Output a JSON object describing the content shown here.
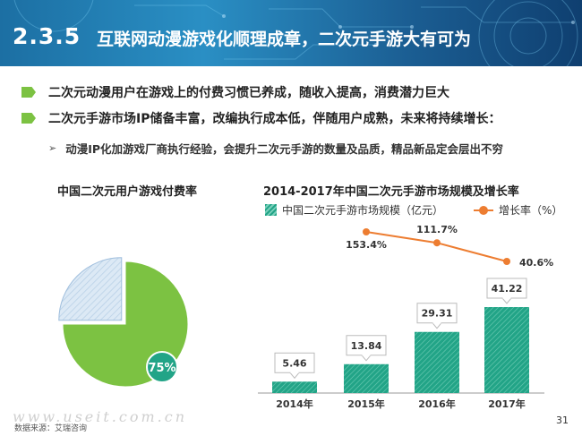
{
  "header": {
    "section_number": "2.3.5",
    "title": "互联网动漫游戏化顺理成章，二次元手游大有可为"
  },
  "bullets": [
    "二次元动漫用户在游戏上的付费习惯已养成，随收入提高，消费潜力巨大",
    "二次元手游市场IP储备丰富，改编执行成本低，伴随用户成熟，未来将持续增长："
  ],
  "sub_bullet": "动漫IP化加游戏厂商执行经验，会提升二次元手游的数量及品质，精品新品定会层出不穷",
  "colors": {
    "pie_main": "#7cc242",
    "pie_rest": "#dce9f5",
    "bar": "#22a487",
    "line": "#ed7d31",
    "bullet": "#7cc242"
  },
  "chart_data": [
    {
      "type": "pie",
      "title": "中国二次元用户游戏付费率",
      "values": [
        75,
        25
      ],
      "labels": [
        "75%",
        ""
      ]
    },
    {
      "type": "bar",
      "title": "2014-2017年中国二次元手游市场规模及增长率",
      "categories": [
        "2014年",
        "2015年",
        "2016年",
        "2017年"
      ],
      "series": [
        {
          "name": "中国二次元手游市场规模（亿元）",
          "type": "bar",
          "values": [
            5.46,
            13.84,
            29.31,
            41.22
          ]
        },
        {
          "name": "增长率（%）",
          "type": "line",
          "x": [
            "2015年",
            "2016年",
            "2017年"
          ],
          "values": [
            153.4,
            111.7,
            40.6
          ],
          "labels": [
            "153.4%",
            "111.7%",
            "40.6%"
          ]
        }
      ],
      "legend_position": "top"
    }
  ],
  "footer": {
    "source": "数据来源：艾瑞咨询",
    "page": "31",
    "watermark": "www.useit.com.cn"
  }
}
